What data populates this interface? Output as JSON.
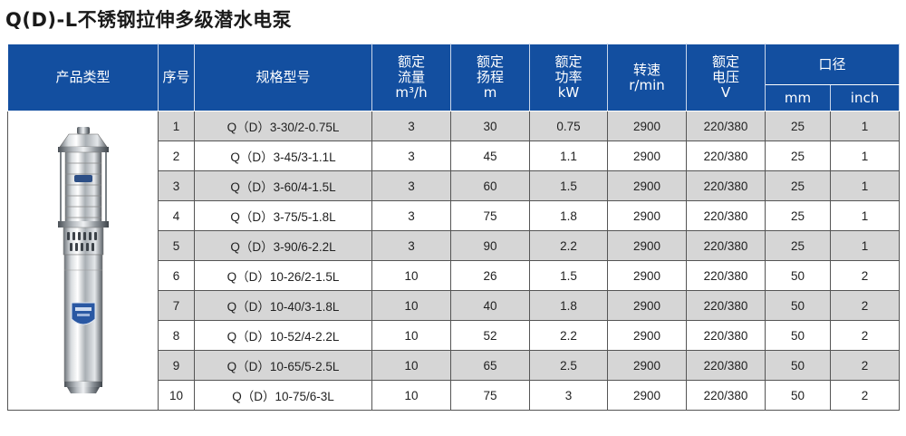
{
  "title": "Q(D)-L不锈钢拉伸多级潜水电泵",
  "headers": {
    "product_type": "产品类型",
    "seq": "序号",
    "model": "规格型号",
    "flow": [
      "额定",
      "流量",
      "m³/h"
    ],
    "head": [
      "额定",
      "扬程",
      "m"
    ],
    "power": [
      "额定",
      "功率",
      "kW"
    ],
    "speed": [
      "转速",
      "r/min"
    ],
    "voltage": [
      "额定",
      "电压",
      "V"
    ],
    "caliber": "口径",
    "caliber_mm": "mm",
    "caliber_inch": "inch"
  },
  "rows": [
    {
      "seq": "1",
      "model": "Q（D）3-30/2-0.75L",
      "flow": "3",
      "head": "30",
      "power": "0.75",
      "speed": "2900",
      "voltage": "220/380",
      "mm": "25",
      "inch": "1"
    },
    {
      "seq": "2",
      "model": "Q（D）3-45/3-1.1L",
      "flow": "3",
      "head": "45",
      "power": "1.1",
      "speed": "2900",
      "voltage": "220/380",
      "mm": "25",
      "inch": "1"
    },
    {
      "seq": "3",
      "model": "Q（D）3-60/4-1.5L",
      "flow": "3",
      "head": "60",
      "power": "1.5",
      "speed": "2900",
      "voltage": "220/380",
      "mm": "25",
      "inch": "1"
    },
    {
      "seq": "4",
      "model": "Q（D）3-75/5-1.8L",
      "flow": "3",
      "head": "75",
      "power": "1.8",
      "speed": "2900",
      "voltage": "220/380",
      "mm": "25",
      "inch": "1"
    },
    {
      "seq": "5",
      "model": "Q（D）3-90/6-2.2L",
      "flow": "3",
      "head": "90",
      "power": "2.2",
      "speed": "2900",
      "voltage": "220/380",
      "mm": "25",
      "inch": "1"
    },
    {
      "seq": "6",
      "model": "Q（D）10-26/2-1.5L",
      "flow": "10",
      "head": "26",
      "power": "1.5",
      "speed": "2900",
      "voltage": "220/380",
      "mm": "50",
      "inch": "2"
    },
    {
      "seq": "7",
      "model": "Q（D）10-40/3-1.8L",
      "flow": "10",
      "head": "40",
      "power": "1.8",
      "speed": "2900",
      "voltage": "220/380",
      "mm": "50",
      "inch": "2"
    },
    {
      "seq": "8",
      "model": "Q（D）10-52/4-2.2L",
      "flow": "10",
      "head": "52",
      "power": "2.2",
      "speed": "2900",
      "voltage": "220/380",
      "mm": "50",
      "inch": "2"
    },
    {
      "seq": "9",
      "model": "Q（D）10-65/5-2.5L",
      "flow": "10",
      "head": "65",
      "power": "2.5",
      "speed": "2900",
      "voltage": "220/380",
      "mm": "50",
      "inch": "2"
    },
    {
      "seq": "10",
      "model": "Q（D）10-75/6-3L",
      "flow": "10",
      "head": "75",
      "power": "3",
      "speed": "2900",
      "voltage": "220/380",
      "mm": "50",
      "inch": "2"
    }
  ],
  "colors": {
    "header_bg": "#134fa0",
    "header_text": "#ffffff",
    "row_shade": "#d6d6d6",
    "row_plain": "#ffffff"
  },
  "image": {
    "icon": "submersible-pump-image"
  }
}
